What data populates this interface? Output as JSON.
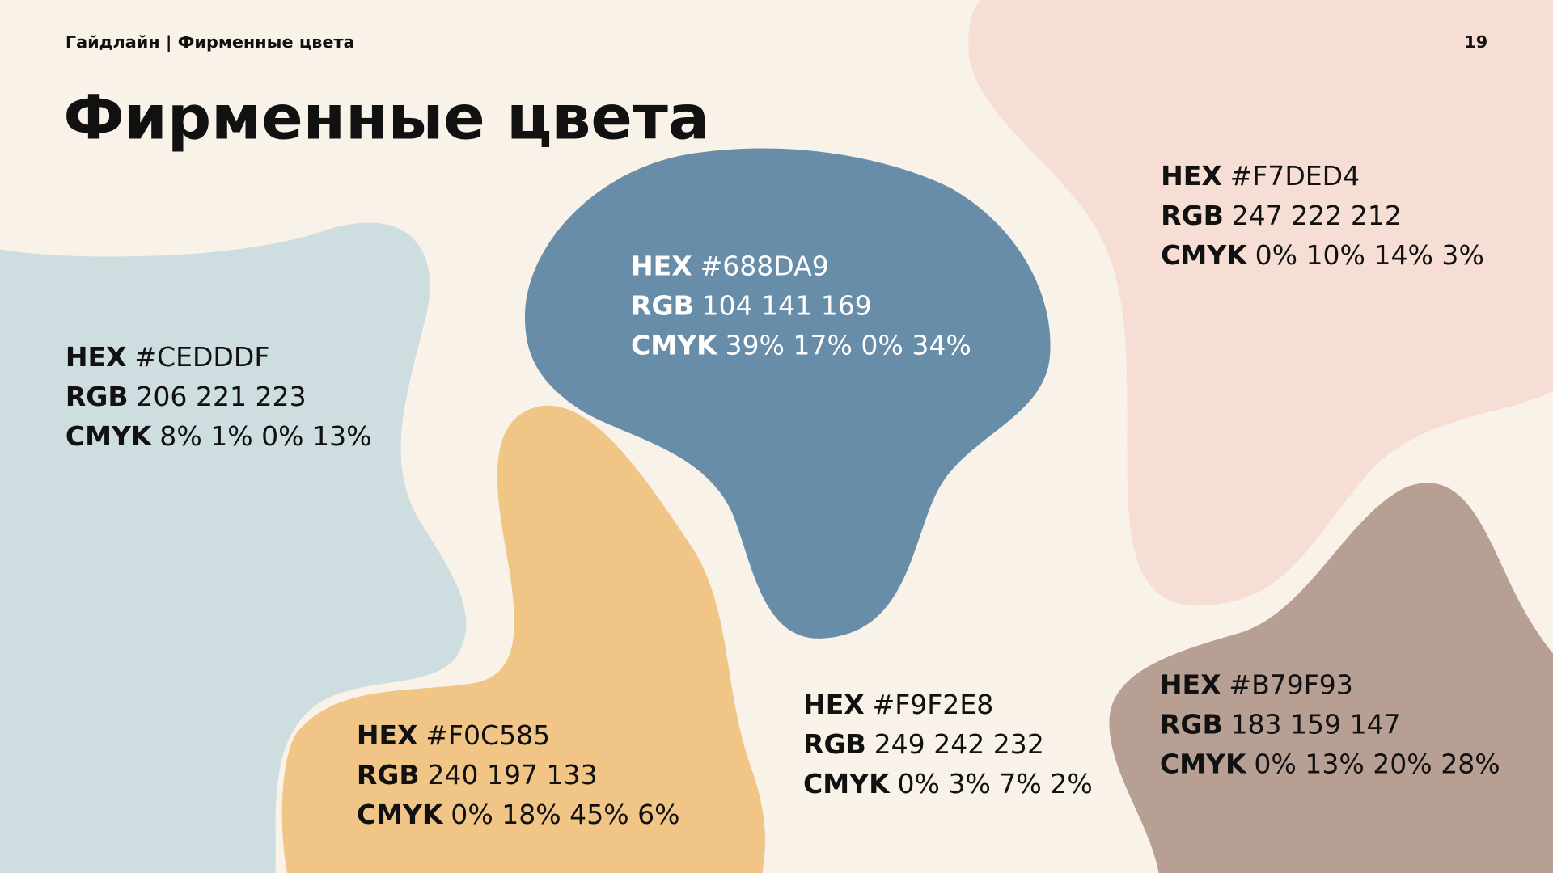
{
  "header": {
    "breadcrumb": "Гайдлайн | Фирменные цвета",
    "page_number": "19"
  },
  "title": "Фирменные цвета",
  "labels": {
    "hex": "HEX",
    "rgb": "RGB",
    "cmyk": "CMYK"
  },
  "colors": [
    {
      "hex": "#CEDDDF",
      "rgb": "206 221 223",
      "cmyk": "8% 1% 0% 13%"
    },
    {
      "hex": "#688DA9",
      "rgb": "104 141 169",
      "cmyk": "39% 17% 0% 34%"
    },
    {
      "hex": "#F7DED4",
      "rgb": "247 222 212",
      "cmyk": "0% 10% 14% 3%"
    },
    {
      "hex": "#F0C585",
      "rgb": "240 197 133",
      "cmyk": "0% 18% 45% 6%"
    },
    {
      "hex": "#F9F2E8",
      "rgb": "249 242 232",
      "cmyk": "0% 3% 7% 2%"
    },
    {
      "hex": "#B79F93",
      "rgb": "183 159 147",
      "cmyk": "0% 13% 20% 28%"
    }
  ]
}
